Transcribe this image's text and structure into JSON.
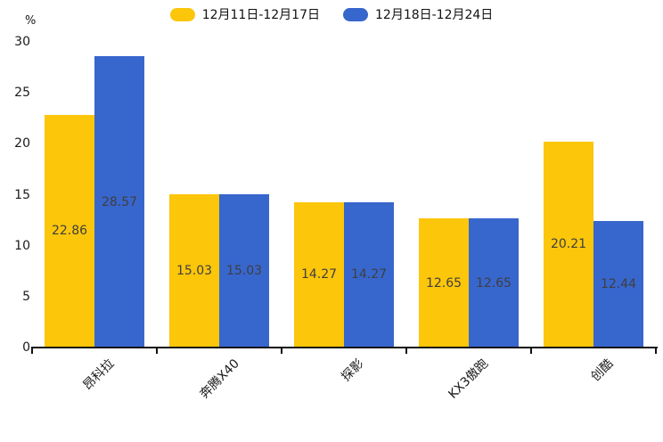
{
  "chart_data": {
    "type": "bar",
    "title": "",
    "categories": [
      "昂科拉",
      "奔腾X40",
      "探影",
      "KX3傲跑",
      "创酷"
    ],
    "series": [
      {
        "name": "12月11日-12月17日",
        "color": "#FCC60B",
        "values": [
          22.86,
          15.03,
          14.27,
          12.65,
          20.21
        ]
      },
      {
        "name": "12月18日-12月24日",
        "color": "#3766CD",
        "values": [
          28.57,
          15.03,
          14.27,
          12.65,
          12.44
        ]
      }
    ],
    "xlabel": "",
    "ylabel": "%",
    "ylim": [
      0,
      30
    ],
    "yticks": [
      0,
      5,
      10,
      15,
      20,
      25,
      30
    ],
    "grid": false,
    "legend_position": "top",
    "bar_labels_inside": true,
    "axis_color": "#111111",
    "label_color": "#3f3f3f",
    "background_color": "#ffffff"
  }
}
